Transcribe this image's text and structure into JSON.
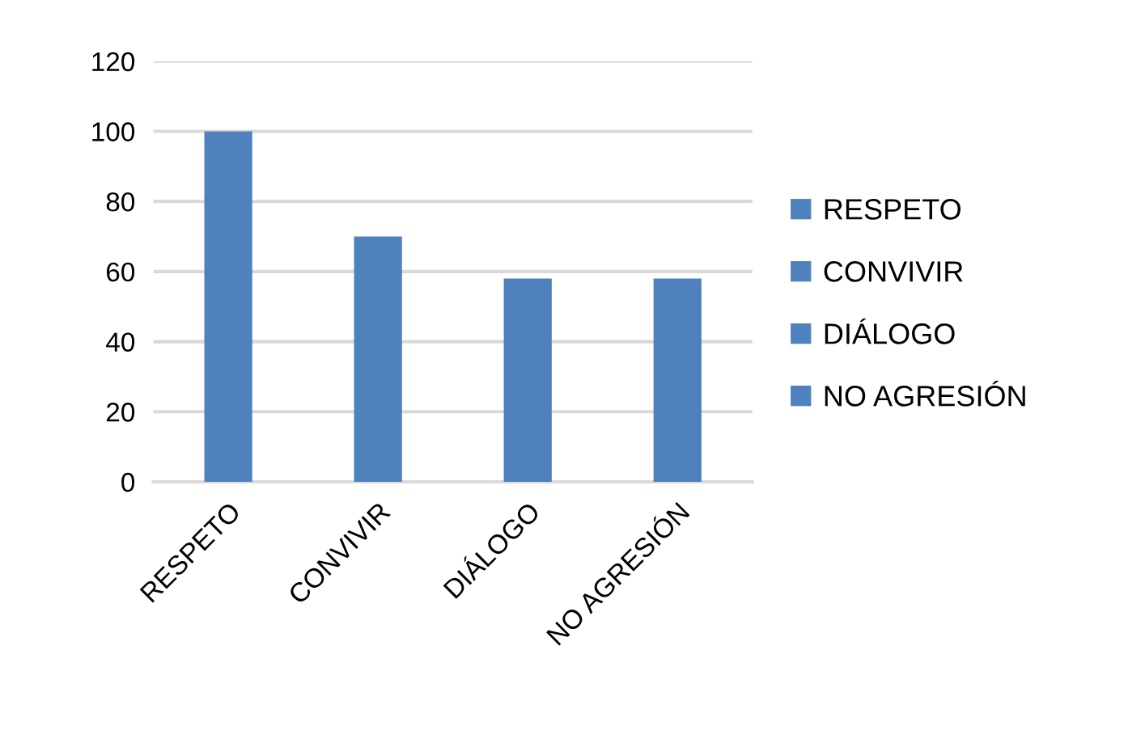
{
  "chart_data": {
    "type": "bar",
    "stacked": true,
    "categories": [
      "RESPETO",
      "CONVIVIR",
      "DIÁLOGO",
      "NO AGRESIÓN"
    ],
    "series": [
      {
        "name": "RESPETO",
        "color": "#4f81bd",
        "values": [
          100,
          null,
          null,
          null
        ]
      },
      {
        "name": "CONVIVIR",
        "color": "#4f81bd",
        "values": [
          null,
          70,
          null,
          null
        ]
      },
      {
        "name": "DIÁLOGO",
        "color": "#4f81bd",
        "values": [
          null,
          null,
          58,
          null
        ]
      },
      {
        "name": "NO AGRESIÓN",
        "color": "#4f81bd",
        "values": [
          null,
          null,
          null,
          58
        ]
      }
    ],
    "ylim": [
      0,
      120
    ],
    "yticks": [
      0,
      20,
      40,
      60,
      80,
      100,
      120
    ],
    "grid": "y",
    "legend": "right"
  }
}
